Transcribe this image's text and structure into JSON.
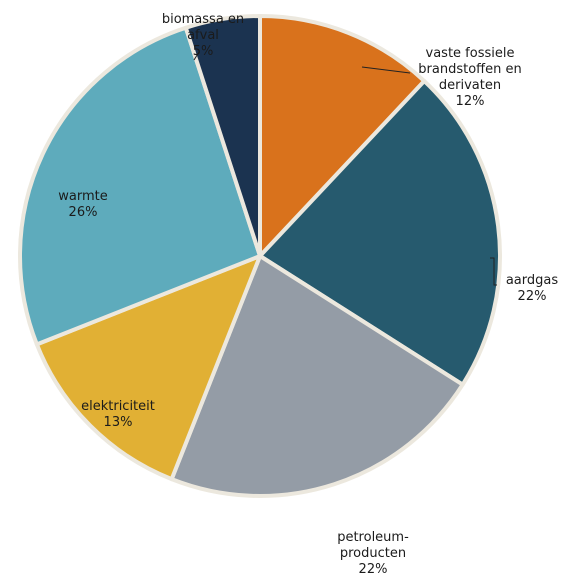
{
  "chart_data": {
    "type": "pie",
    "title": "",
    "slices": [
      {
        "label_lines": [
          "vaste fossiele",
          "brandstoffen en",
          "derivaten"
        ],
        "percent_label": "12%",
        "value": 12,
        "color": "#d9721c"
      },
      {
        "label_lines": [
          "aardgas"
        ],
        "percent_label": "22%",
        "value": 22,
        "color": "#265a6e"
      },
      {
        "label_lines": [
          "petroleum-",
          "producten"
        ],
        "percent_label": "22%",
        "value": 22,
        "color": "#949ca6"
      },
      {
        "label_lines": [
          "elektriciteit"
        ],
        "percent_label": "13%",
        "value": 13,
        "color": "#e1b034"
      },
      {
        "label_lines": [
          "warmte"
        ],
        "percent_label": "26%",
        "value": 26,
        "color": "#5eabbc"
      },
      {
        "label_lines": [
          "biomassa en",
          "afval"
        ],
        "percent_label": "5%",
        "value": 5,
        "color": "#1b3350"
      }
    ],
    "border_color": "#ece8de",
    "legend": "none"
  }
}
